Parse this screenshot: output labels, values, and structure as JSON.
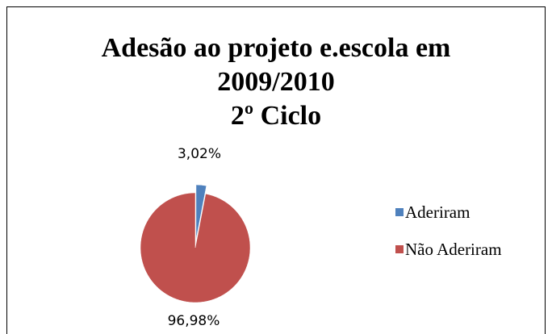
{
  "chart_data": {
    "type": "pie",
    "title": [
      "Adesão ao projeto e.escola em",
      "2009/2010",
      "2º Ciclo"
    ],
    "categories": [
      "Aderiram",
      "Não Aderiram"
    ],
    "values": [
      3.02,
      96.98
    ],
    "value_labels": [
      "3,02%",
      "96,98%"
    ],
    "colors": [
      "#4f81bd",
      "#c0504d"
    ],
    "legend": "right"
  }
}
